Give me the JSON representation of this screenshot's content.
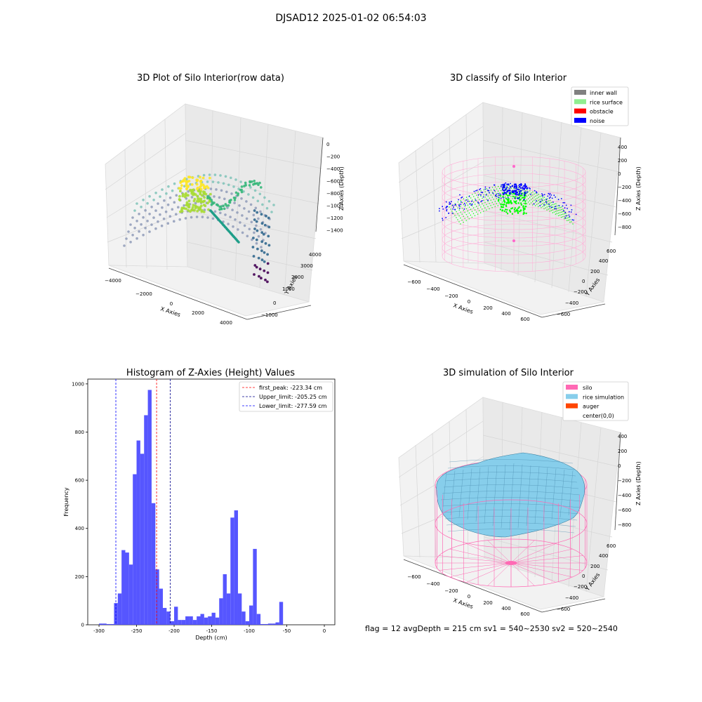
{
  "figure": {
    "suptitle": "DJSAD12 2025-01-02 06:54:03",
    "footer": "flag = 12   avgDepth = 215 cm   sv1 = 540~2530  sv2 = 520~2540"
  },
  "chart_data": [
    {
      "type": "scatter",
      "panel": "3d-raw",
      "title": "3D Plot of Silo Interior(row data)",
      "xlabel": "X Axies",
      "ylabel": "Y Axies",
      "zlabel": "Z Axies (Depth)",
      "xticks": [
        "−4000",
        "−2000",
        "0",
        "2000",
        "4000"
      ],
      "yticks": [
        "−1000",
        "0",
        "1000",
        "2000",
        "3000",
        "4000"
      ],
      "zticks": [
        "0",
        "−200",
        "−400",
        "−600",
        "−800",
        "−1000",
        "−1200",
        "−1400"
      ],
      "xlim": [
        -4500,
        4500
      ],
      "ylim": [
        -1500,
        4500
      ],
      "zlim": [
        -1550,
        50
      ],
      "colormap": "viridis",
      "points_note_colors": [
        "#440154",
        "#31688e",
        "#35b779",
        "#fde725"
      ]
    },
    {
      "type": "scatter",
      "panel": "3d-classify",
      "title": "3D classify of Silo Interior",
      "xlabel": "X Axies",
      "ylabel": "Y Axies",
      "zlabel": "Z Axies (Depth)",
      "xticks": [
        "−600",
        "−400",
        "−200",
        "0",
        "200",
        "400",
        "600"
      ],
      "yticks": [
        "−600",
        "−400",
        "−200",
        "0",
        "200",
        "400",
        "600"
      ],
      "zticks": [
        "400",
        "200",
        "0",
        "−200",
        "−400",
        "−600",
        "−800"
      ],
      "legend": {
        "position": "upper right",
        "entries": [
          {
            "label": "inner wall",
            "color": "#808080"
          },
          {
            "label": "rice surface",
            "color": "#90ee90"
          },
          {
            "label": "obstacle",
            "color": "#ff0000"
          },
          {
            "label": "noise",
            "color": "#0000ff"
          }
        ]
      },
      "colors": {
        "wall": "#ffb0d8",
        "rice": "#00ff00",
        "noise": "#0000ff"
      }
    },
    {
      "type": "bar",
      "panel": "histogram",
      "title": "Histogram of Z-Axies (Height) Values",
      "xlabel": "Depth (cm)",
      "ylabel": "Frequency",
      "xlim": [
        -315,
        14
      ],
      "ylim": [
        0,
        1020
      ],
      "xticks": [
        -300,
        -250,
        -200,
        -150,
        -100,
        -50,
        0
      ],
      "yticks": [
        0,
        200,
        400,
        600,
        800,
        1000
      ],
      "bar_color": "#4d4dff",
      "bin_width": 5,
      "bins": [
        {
          "x": -300,
          "v": 5
        },
        {
          "x": -295,
          "v": 5
        },
        {
          "x": -290,
          "v": 3
        },
        {
          "x": -285,
          "v": 3
        },
        {
          "x": -280,
          "v": 90
        },
        {
          "x": -275,
          "v": 130
        },
        {
          "x": -270,
          "v": 310
        },
        {
          "x": -265,
          "v": 300
        },
        {
          "x": -260,
          "v": 250
        },
        {
          "x": -255,
          "v": 625
        },
        {
          "x": -250,
          "v": 765
        },
        {
          "x": -245,
          "v": 710
        },
        {
          "x": -240,
          "v": 870
        },
        {
          "x": -235,
          "v": 975
        },
        {
          "x": -230,
          "v": 505
        },
        {
          "x": -225,
          "v": 230
        },
        {
          "x": -220,
          "v": 150
        },
        {
          "x": -215,
          "v": 70
        },
        {
          "x": -210,
          "v": 55
        },
        {
          "x": -205,
          "v": 15
        },
        {
          "x": -200,
          "v": 75
        },
        {
          "x": -195,
          "v": 20
        },
        {
          "x": -190,
          "v": 20
        },
        {
          "x": -185,
          "v": 35
        },
        {
          "x": -180,
          "v": 35
        },
        {
          "x": -175,
          "v": 20
        },
        {
          "x": -170,
          "v": 35
        },
        {
          "x": -165,
          "v": 45
        },
        {
          "x": -160,
          "v": 30
        },
        {
          "x": -155,
          "v": 35
        },
        {
          "x": -150,
          "v": 50
        },
        {
          "x": -145,
          "v": 30
        },
        {
          "x": -140,
          "v": 110
        },
        {
          "x": -135,
          "v": 210
        },
        {
          "x": -130,
          "v": 130
        },
        {
          "x": -125,
          "v": 445
        },
        {
          "x": -120,
          "v": 475
        },
        {
          "x": -115,
          "v": 130
        },
        {
          "x": -110,
          "v": 55
        },
        {
          "x": -105,
          "v": 15
        },
        {
          "x": -100,
          "v": 80
        },
        {
          "x": -95,
          "v": 315
        },
        {
          "x": -90,
          "v": 45
        },
        {
          "x": -85,
          "v": 3
        },
        {
          "x": -80,
          "v": 3
        },
        {
          "x": -75,
          "v": 5
        },
        {
          "x": -70,
          "v": 5
        },
        {
          "x": -65,
          "v": 10
        },
        {
          "x": -60,
          "v": 95
        }
      ],
      "vlines": [
        {
          "label": "first_peak: -223.34 cm",
          "x": -223.34,
          "color": "#ff0000"
        },
        {
          "label": "Upper_limit: -205.25 cm",
          "x": -205.25,
          "color": "#00008b"
        },
        {
          "label": "Lower_limit: -277.59 cm",
          "x": -277.59,
          "color": "#0000ff"
        }
      ],
      "legend_position": "upper right"
    },
    {
      "type": "surface",
      "panel": "3d-simulation",
      "title": "3D simulation of Silo Interior",
      "xlabel": "X Axies",
      "ylabel": "Y Axies",
      "zlabel": "Z Axies (Depth)",
      "xticks": [
        "−600",
        "−400",
        "−200",
        "0",
        "200",
        "400",
        "600"
      ],
      "yticks": [
        "−600",
        "−400",
        "−200",
        "0",
        "200",
        "400",
        "600"
      ],
      "zticks": [
        "400",
        "200",
        "0",
        "−200",
        "−400",
        "−600",
        "−800"
      ],
      "legend": {
        "position": "upper right",
        "entries": [
          {
            "label": "silo",
            "color": "#ff69b4"
          },
          {
            "label": "rice simulation",
            "color": "#87ceeb"
          },
          {
            "label": "auger",
            "color": "#ff4500"
          },
          {
            "label": "center(0,0)",
            "color": ""
          }
        ]
      }
    }
  ]
}
